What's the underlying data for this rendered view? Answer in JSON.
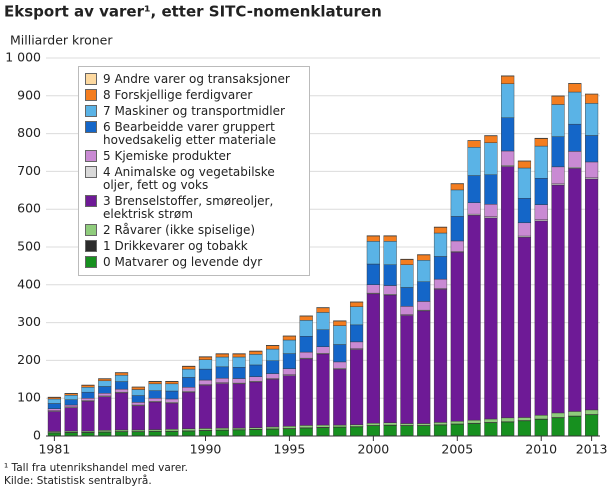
{
  "chart_data": {
    "type": "stacked_bar",
    "title": "Eksport av varer¹, etter SITC-nomenklaturen",
    "y_label": "Milliarder kroner",
    "footnotes": [
      "¹ Tall fra utenrikshandel med varer.",
      "Kilde: Statistisk sentralbyrå."
    ],
    "categories": [
      "1981",
      null,
      null,
      null,
      null,
      null,
      null,
      null,
      null,
      "1990",
      null,
      null,
      null,
      null,
      "1995",
      null,
      null,
      null,
      null,
      "2000",
      null,
      null,
      null,
      null,
      "2005",
      null,
      null,
      null,
      null,
      "2010",
      null,
      null,
      "2013"
    ],
    "ylim": [
      0,
      1000
    ],
    "yticks": [
      0,
      100,
      200,
      300,
      400,
      500,
      600,
      700,
      800,
      900,
      {
        "value": 1000,
        "label": "1 000"
      }
    ],
    "grid": true,
    "series": [
      {
        "name": "0 Matvarer og levende dyr",
        "color": "#17901f",
        "values": [
          8,
          9,
          9,
          10,
          11,
          11,
          12,
          12,
          13,
          14,
          15,
          16,
          17,
          18,
          19,
          21,
          22,
          23,
          24,
          27,
          28,
          27,
          27,
          29,
          31,
          33,
          35,
          37,
          40,
          44,
          48,
          52,
          56
        ]
      },
      {
        "name": "1 Drikkevarer og tobakk",
        "color": "#2b2b2b",
        "values": [
          1,
          1,
          1,
          1,
          1,
          1,
          1,
          1,
          1,
          1,
          1,
          1,
          1,
          1,
          1,
          1,
          1,
          1,
          1,
          1,
          1,
          1,
          1,
          1,
          1,
          1,
          1,
          1,
          1,
          1,
          1,
          1,
          1
        ]
      },
      {
        "name": "2 Råvarer (ikke spiselige)",
        "color": "#8fcc7c",
        "values": [
          3,
          3,
          3,
          4,
          4,
          4,
          4,
          5,
          5,
          5,
          5,
          4,
          4,
          5,
          6,
          6,
          6,
          5,
          5,
          6,
          6,
          5,
          5,
          6,
          7,
          8,
          9,
          10,
          8,
          10,
          12,
          12,
          12
        ]
      },
      {
        "name": "3 Brenselstoffer, smøreoljer, elektrisk strøm",
        "color": "#6e1a96",
        "values": [
          53,
          62,
          79,
          89,
          98,
          64,
          73,
          69,
          97,
          114,
          118,
          117,
          121,
          126,
          134,
          176,
          188,
          148,
          199,
          342,
          338,
          286,
          298,
          352,
          447,
          542,
          532,
          665,
          477,
          514,
          603,
          643,
          611
        ]
      },
      {
        "name": "4 Animalske og vegetabilske oljer, fett og voks",
        "color": "#d9d9d9",
        "values": [
          2,
          2,
          2,
          2,
          2,
          2,
          2,
          2,
          2,
          2,
          2,
          2,
          2,
          2,
          2,
          2,
          2,
          2,
          2,
          2,
          2,
          2,
          2,
          2,
          2,
          3,
          3,
          3,
          3,
          3,
          3,
          3,
          3
        ]
      },
      {
        "name": "5 Kjemiske produkter",
        "color": "#c98ad3",
        "values": [
          5,
          5,
          6,
          7,
          8,
          7,
          8,
          9,
          11,
          12,
          12,
          12,
          12,
          13,
          16,
          16,
          17,
          17,
          18,
          22,
          23,
          22,
          23,
          25,
          28,
          30,
          33,
          38,
          35,
          40,
          45,
          42,
          42
        ]
      },
      {
        "name": "6 Bearbeidde varer gruppert hovedsakelig etter materiale",
        "color": "#1466c8",
        "values": [
          14,
          14,
          16,
          18,
          20,
          18,
          20,
          21,
          26,
          29,
          30,
          30,
          31,
          34,
          40,
          42,
          45,
          46,
          45,
          55,
          55,
          50,
          52,
          60,
          65,
          72,
          78,
          88,
          65,
          70,
          80,
          72,
          70
        ]
      },
      {
        "name": "7 Maskiner og transportmidler",
        "color": "#5ab3e6",
        "values": [
          12,
          12,
          13,
          15,
          17,
          16,
          18,
          19,
          22,
          25,
          26,
          27,
          28,
          31,
          36,
          42,
          46,
          50,
          48,
          60,
          62,
          60,
          57,
          62,
          70,
          75,
          85,
          90,
          80,
          85,
          85,
          85,
          85
        ]
      },
      {
        "name": "8 Forskjellige ferdigvarer",
        "color": "#f47d1f",
        "values": [
          4,
          4,
          5,
          5,
          6,
          6,
          6,
          6,
          7,
          7,
          8,
          8,
          8,
          9,
          10,
          11,
          12,
          12,
          12,
          14,
          14,
          14,
          14,
          15,
          16,
          17,
          18,
          20,
          18,
          20,
          22,
          22,
          24
        ]
      },
      {
        "name": "9 Andre varer og transaksjoner",
        "color": "#fdd9a0",
        "values": [
          1,
          1,
          1,
          1,
          1,
          1,
          1,
          1,
          1,
          1,
          1,
          1,
          1,
          1,
          1,
          1,
          1,
          1,
          1,
          1,
          1,
          1,
          1,
          1,
          1,
          1,
          1,
          1,
          1,
          1,
          1,
          1,
          1
        ]
      }
    ]
  }
}
